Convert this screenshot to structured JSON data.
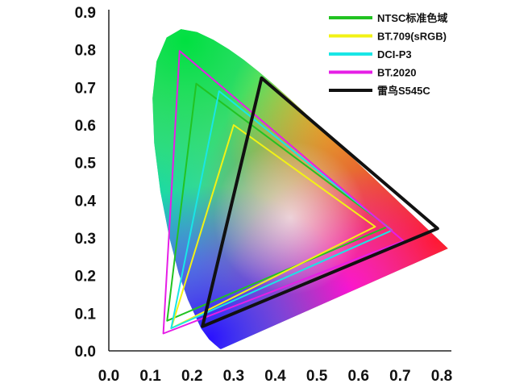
{
  "chart_data": {
    "type": "scatter",
    "subtype": "CIE 1931 chromaticity diagram with color gamut triangles",
    "title": "",
    "xlabel": "",
    "ylabel": "",
    "xlim": [
      0,
      0.8
    ],
    "ylim": [
      0,
      0.9
    ],
    "x_ticks": [
      "0.0",
      "0.1",
      "0.2",
      "0.3",
      "0.4",
      "0.5",
      "0.6",
      "0.7",
      "0.8"
    ],
    "y_ticks": [
      "0.0",
      "0.1",
      "0.2",
      "0.3",
      "0.4",
      "0.5",
      "0.6",
      "0.7",
      "0.8",
      "0.9"
    ],
    "grid": false,
    "legend_position": "top-right",
    "series": [
      {
        "name": "NTSC标准色域",
        "color": "#22c322",
        "line_width": 2,
        "points": [
          [
            0.67,
            0.33
          ],
          [
            0.21,
            0.71
          ],
          [
            0.14,
            0.08
          ]
        ]
      },
      {
        "name": "BT.709(sRGB)",
        "color": "#f2f215",
        "line_width": 2,
        "points": [
          [
            0.64,
            0.33
          ],
          [
            0.3,
            0.6
          ],
          [
            0.15,
            0.06
          ]
        ]
      },
      {
        "name": "DCI-P3",
        "color": "#19e6e6",
        "line_width": 2,
        "points": [
          [
            0.68,
            0.32
          ],
          [
            0.265,
            0.69
          ],
          [
            0.15,
            0.06
          ]
        ]
      },
      {
        "name": "BT.2020",
        "color": "#e61ee6",
        "line_width": 2,
        "points": [
          [
            0.708,
            0.292
          ],
          [
            0.17,
            0.797
          ],
          [
            0.131,
            0.046
          ]
        ]
      },
      {
        "name": "雷鸟S545C",
        "color": "#111111",
        "line_width": 4,
        "points": [
          [
            0.79,
            0.325
          ],
          [
            0.367,
            0.725
          ],
          [
            0.225,
            0.065
          ]
        ]
      }
    ]
  }
}
